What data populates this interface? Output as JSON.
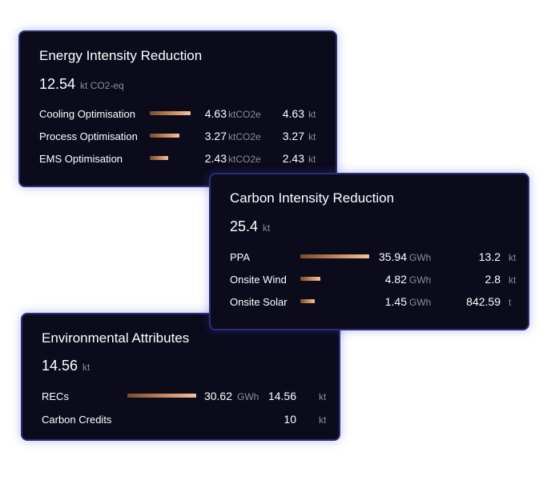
{
  "energy_card": {
    "title": "Energy Intensity Reduction",
    "total_value": "12.54",
    "total_unit": "kt CO2-eq",
    "rows": [
      {
        "label": "Cooling Optimisation",
        "bar_fraction": 0.85,
        "value1": "4.63",
        "unit1": "ktCO2e",
        "value2": "4.63",
        "unit2": "kt"
      },
      {
        "label": "Process Optimisation",
        "bar_fraction": 0.62,
        "value1": "3.27",
        "unit1": "ktCO2e",
        "value2": "3.27",
        "unit2": "kt"
      },
      {
        "label": "EMS Optimisation",
        "bar_fraction": 0.38,
        "value1": "2.43",
        "unit1": "ktCO2e",
        "value2": "2.43",
        "unit2": "kt"
      }
    ]
  },
  "carbon_card": {
    "title": "Carbon Intensity Reduction",
    "total_value": "25.4",
    "total_unit": "kt",
    "rows": [
      {
        "label": "PPA",
        "bar_fraction": 0.98,
        "value1": "35.94",
        "unit1": "GWh",
        "value2": "13.2",
        "unit2": "kt"
      },
      {
        "label": "Onsite Wind",
        "bar_fraction": 0.28,
        "value1": "4.82",
        "unit1": "GWh",
        "value2": "2.8",
        "unit2": "kt"
      },
      {
        "label": "Onsite Solar",
        "bar_fraction": 0.2,
        "value1": "1.45",
        "unit1": "GWh",
        "value2": "842.59",
        "unit2": "t"
      }
    ]
  },
  "env_card": {
    "title": "Environmental Attributes",
    "total_value": "14.56",
    "total_unit": "kt",
    "rows": [
      {
        "label": "RECs",
        "bar_fraction": 0.98,
        "value1": "30.62",
        "unit1": "GWh",
        "value2": "14.56",
        "unit2": "kt"
      },
      {
        "label": "Carbon Credits",
        "bar_fraction": 0,
        "value1": "",
        "unit1": "",
        "value2": "10",
        "unit2": "kt"
      }
    ]
  }
}
